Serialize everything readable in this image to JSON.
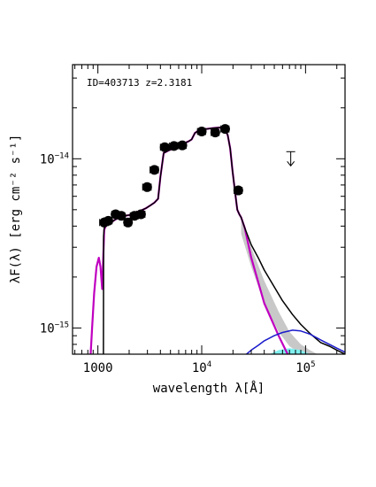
{
  "chart_data": {
    "type": "line",
    "annotation": "ID=403713 z=2.3181",
    "xlabel": "wavelength λ[Å]",
    "ylabel": "λF(λ) [erg cm⁻² s⁻¹]",
    "x_scale": "log",
    "y_scale": "log",
    "xlim": [
      570,
      240000
    ],
    "ylim": [
      7e-16,
      3.6e-14
    ],
    "x_ticks": [
      {
        "value": 1000,
        "base": "1000",
        "exp": ""
      },
      {
        "value": 10000,
        "base": "10",
        "exp": "4"
      },
      {
        "value": 100000,
        "base": "10",
        "exp": "5"
      }
    ],
    "y_ticks": [
      {
        "value": 1e-15,
        "base": "10",
        "exp": "−15"
      },
      {
        "value": 1e-14,
        "base": "10",
        "exp": "−14"
      }
    ],
    "photometry": {
      "x": [
        1150,
        1260,
        1480,
        1680,
        1950,
        2250,
        2600,
        2980,
        3500,
        4400,
        5400,
        6500,
        10000,
        13500,
        16800,
        22500
      ],
      "y": [
        4.2e-15,
        4.3e-15,
        4.7e-15,
        4.6e-15,
        4.2e-15,
        4.6e-15,
        4.7e-15,
        6.8e-15,
        8.6e-15,
        1.17e-14,
        1.19e-14,
        1.2e-14,
        1.45e-14,
        1.43e-14,
        1.5e-14,
        6.5e-15
      ],
      "xerr_lo": [
        110,
        110,
        120,
        140,
        160,
        200,
        240,
        280,
        320,
        400,
        500,
        600,
        900,
        1200,
        1500,
        2000
      ],
      "xerr_hi": [
        110,
        110,
        120,
        140,
        160,
        200,
        240,
        280,
        320,
        400,
        500,
        600,
        900,
        1200,
        1500,
        2000
      ],
      "color": "#000000"
    },
    "upper_limit": {
      "x": 72000,
      "y": 1e-14
    },
    "series": [
      {
        "color": "#c000c0",
        "x": [
          850,
          880,
          920,
          970,
          1020,
          1060,
          1100,
          1150,
          1200,
          1260,
          1340,
          1450,
          1600,
          1800,
          2000,
          2300,
          2600,
          2900,
          3200,
          3500,
          3800,
          4000,
          4300,
          4800,
          5500,
          6500,
          7500,
          8000,
          8600,
          9500,
          11000,
          13000,
          15000,
          16500,
          17800,
          18800,
          19800,
          21000,
          22000,
          23000,
          24000,
          26000,
          30000,
          40000,
          55000,
          68000
        ],
        "y": [
          6.9e-16,
          1e-15,
          1.6e-15,
          2.3e-15,
          2.6e-15,
          2.3e-15,
          1.7e-15,
          3.8e-15,
          4.05e-15,
          4.15e-15,
          4.2e-15,
          4.35e-15,
          4.5e-15,
          4.6e-15,
          4.65e-15,
          4.8e-15,
          4.95e-15,
          5.1e-15,
          5.3e-15,
          5.5e-15,
          5.8e-15,
          7.8e-15,
          1.08e-14,
          1.12e-14,
          1.16e-14,
          1.22e-14,
          1.27e-14,
          1.3e-14,
          1.42e-14,
          1.48e-14,
          1.5e-14,
          1.52e-14,
          1.53e-14,
          1.52e-14,
          1.38e-14,
          1.15e-14,
          8.5e-15,
          6.3e-15,
          5e-15,
          4.7e-15,
          4.5e-15,
          3.9e-15,
          2.6e-15,
          1.4e-15,
          9e-16,
          6.9e-16
        ]
      },
      {
        "color": "#000000",
        "x": [
          1130,
          1135,
          1150,
          1200,
          1260,
          1340,
          1450,
          1600,
          1800,
          2000,
          2300,
          2600,
          2900,
          3200,
          3500,
          3800,
          4000,
          4300,
          4800,
          5500,
          6500,
          7500,
          8000,
          8600,
          9500,
          11000,
          13000,
          15000,
          16500,
          17800,
          18800,
          19800,
          21000,
          22000,
          23000,
          24000,
          26000,
          30000,
          35000,
          40000,
          50000,
          60000,
          75000,
          90000,
          110000,
          140000,
          170000,
          200000,
          240000
        ],
        "y": [
          6.9e-16,
          3.5e-15,
          3.9e-15,
          4.05e-15,
          4.15e-15,
          4.2e-15,
          4.35e-15,
          4.5e-15,
          4.6e-15,
          4.65e-15,
          4.8e-15,
          4.95e-15,
          5.1e-15,
          5.3e-15,
          5.5e-15,
          5.8e-15,
          7.8e-15,
          1.08e-14,
          1.12e-14,
          1.16e-14,
          1.22e-14,
          1.27e-14,
          1.3e-14,
          1.42e-14,
          1.48e-14,
          1.5e-14,
          1.52e-14,
          1.53e-14,
          1.52e-14,
          1.38e-14,
          1.15e-14,
          8.5e-15,
          6.3e-15,
          5e-15,
          4.7e-15,
          4.5e-15,
          3.9e-15,
          3.1e-15,
          2.6e-15,
          2.2e-15,
          1.75e-15,
          1.45e-15,
          1.2e-15,
          1.05e-15,
          9.3e-16,
          8.2e-16,
          7.8e-16,
          7.4e-16,
          7e-16
        ]
      },
      {
        "color": "#1a1acc",
        "x": [
          27000,
          30000,
          35000,
          40000,
          50000,
          60000,
          75000,
          90000,
          110000,
          140000,
          170000,
          200000,
          240000
        ],
        "y": [
          7e-16,
          7.4e-16,
          7.9e-16,
          8.4e-16,
          9e-16,
          9.4e-16,
          9.7e-16,
          9.6e-16,
          9.2e-16,
          8.5e-16,
          8e-16,
          7.6e-16,
          7.2e-16
        ]
      }
    ],
    "band": {
      "color": "#c8c8c8",
      "x": [
        24000,
        30000,
        40000,
        55000,
        70000,
        90000,
        110000,
        130000
      ],
      "y_upper": [
        4.3e-15,
        3e-15,
        1.9e-15,
        1.25e-15,
        9.5e-16,
        8e-16,
        7.4e-16,
        7e-16
      ],
      "y_lower": [
        3.6e-15,
        2.3e-15,
        1.4e-15,
        9.5e-16,
        7.8e-16,
        7e-16,
        7e-16,
        7e-16
      ]
    },
    "cyan_component": {
      "color": "#80f0f0",
      "x": [
        45000,
        55000,
        70000,
        90000,
        110000
      ],
      "y": [
        7e-16,
        7.4e-16,
        7.6e-16,
        7.4e-16,
        7e-16
      ]
    }
  }
}
